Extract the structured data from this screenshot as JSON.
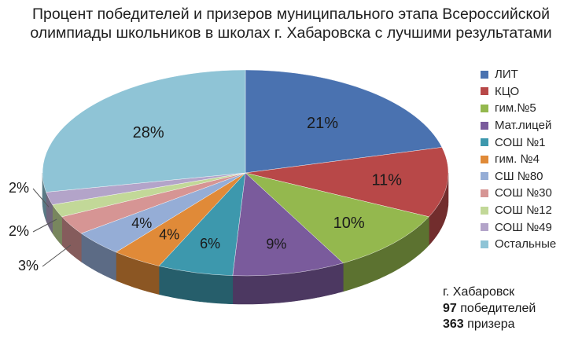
{
  "title": {
    "line1": "Процент победителей и призеров муниципального этапа Всероссийской",
    "line2": "олимпиады школьников в школах г. Хабаровска с лучшими результатами"
  },
  "info": {
    "city": "г. Хабаровск",
    "winners_count": "97",
    "winners_label": "победителей",
    "prize_count": "363",
    "prize_label": "призера"
  },
  "chart_data": {
    "type": "pie",
    "style": "3d",
    "legend_position": "right",
    "title": "Процент победителей и призеров муниципального этапа Всероссийской олимпиады школьников в школах г. Хабаровска с лучшими результатами",
    "slices": [
      {
        "label": "ЛИТ",
        "value": 21,
        "display": "21%",
        "color": "#4a72b0"
      },
      {
        "label": "КЦО",
        "value": 11,
        "display": "11%",
        "color": "#b84848"
      },
      {
        "label": "гим.№5",
        "value": 10,
        "display": "10%",
        "color": "#94b84e"
      },
      {
        "label": "Мат.лицей",
        "value": 9,
        "display": "9%",
        "color": "#7a5b9c"
      },
      {
        "label": "СОШ №1",
        "value": 6,
        "display": "6%",
        "color": "#3d98ad"
      },
      {
        "label": "гим. №4",
        "value": 4,
        "display": "4%",
        "color": "#e08a38"
      },
      {
        "label": "СШ №80",
        "value": 4,
        "display": "4%",
        "color": "#95add6"
      },
      {
        "label": "СОШ №30",
        "value": 3,
        "display": "3%",
        "color": "#d69594"
      },
      {
        "label": "СОШ №12",
        "value": 2,
        "display": "2%",
        "color": "#c2d898"
      },
      {
        "label": "СОШ №49",
        "value": 2,
        "display": "2%",
        "color": "#b3a4c9"
      },
      {
        "label": "Остальные",
        "value": 28,
        "display": "28%",
        "color": "#8fc4d6"
      }
    ]
  }
}
